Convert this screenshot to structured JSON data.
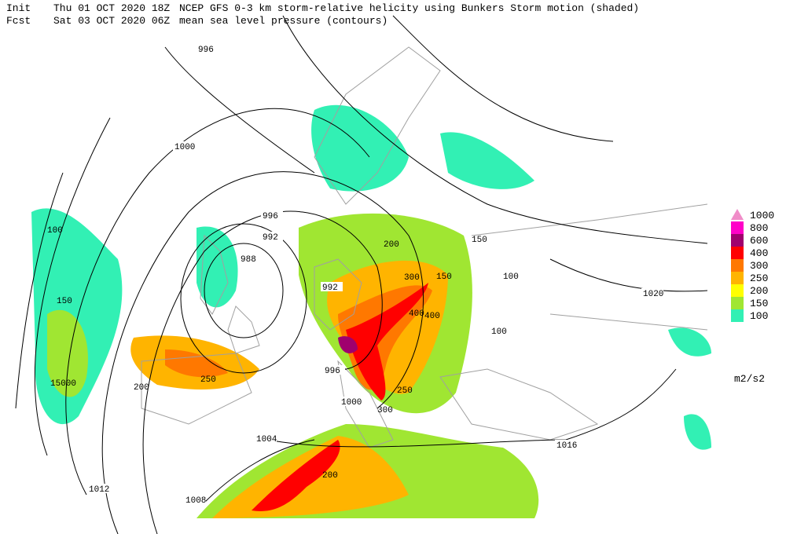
{
  "header": {
    "line1": [
      "Init",
      "Thu 01 OCT 2020 18Z",
      "NCEP GFS 0-3 km storm-relative helicity using Bunkers Storm motion (shaded)"
    ],
    "line2": [
      "Fcst",
      "Sat 03 OCT 2020 06Z",
      "mean sea level pressure (contours)"
    ]
  },
  "legend": {
    "items": [
      {
        "value": 1000,
        "color": "#f08cc8"
      },
      {
        "value": 800,
        "color": "#ff00c8"
      },
      {
        "value": 600,
        "color": "#a0006e"
      },
      {
        "value": 400,
        "color": "#ff0000"
      },
      {
        "value": 300,
        "color": "#ff7800"
      },
      {
        "value": 250,
        "color": "#ffb400"
      },
      {
        "value": 200,
        "color": "#ffff00"
      },
      {
        "value": 150,
        "color": "#a0e632"
      },
      {
        "value": 100,
        "color": "#32f0b4"
      }
    ],
    "unit": "m2/s2"
  },
  "contour_labels": [
    "996",
    "1000",
    "996",
    "992",
    "988",
    "992",
    "996",
    "1000",
    "1004",
    "1012",
    "1008",
    "1016",
    "1020"
  ],
  "shade_labels": [
    "100",
    "150",
    "15000",
    "200",
    "250",
    "300",
    "400",
    "100",
    "150",
    "200",
    "300",
    "400",
    "250",
    "100",
    "150",
    "200"
  ]
}
